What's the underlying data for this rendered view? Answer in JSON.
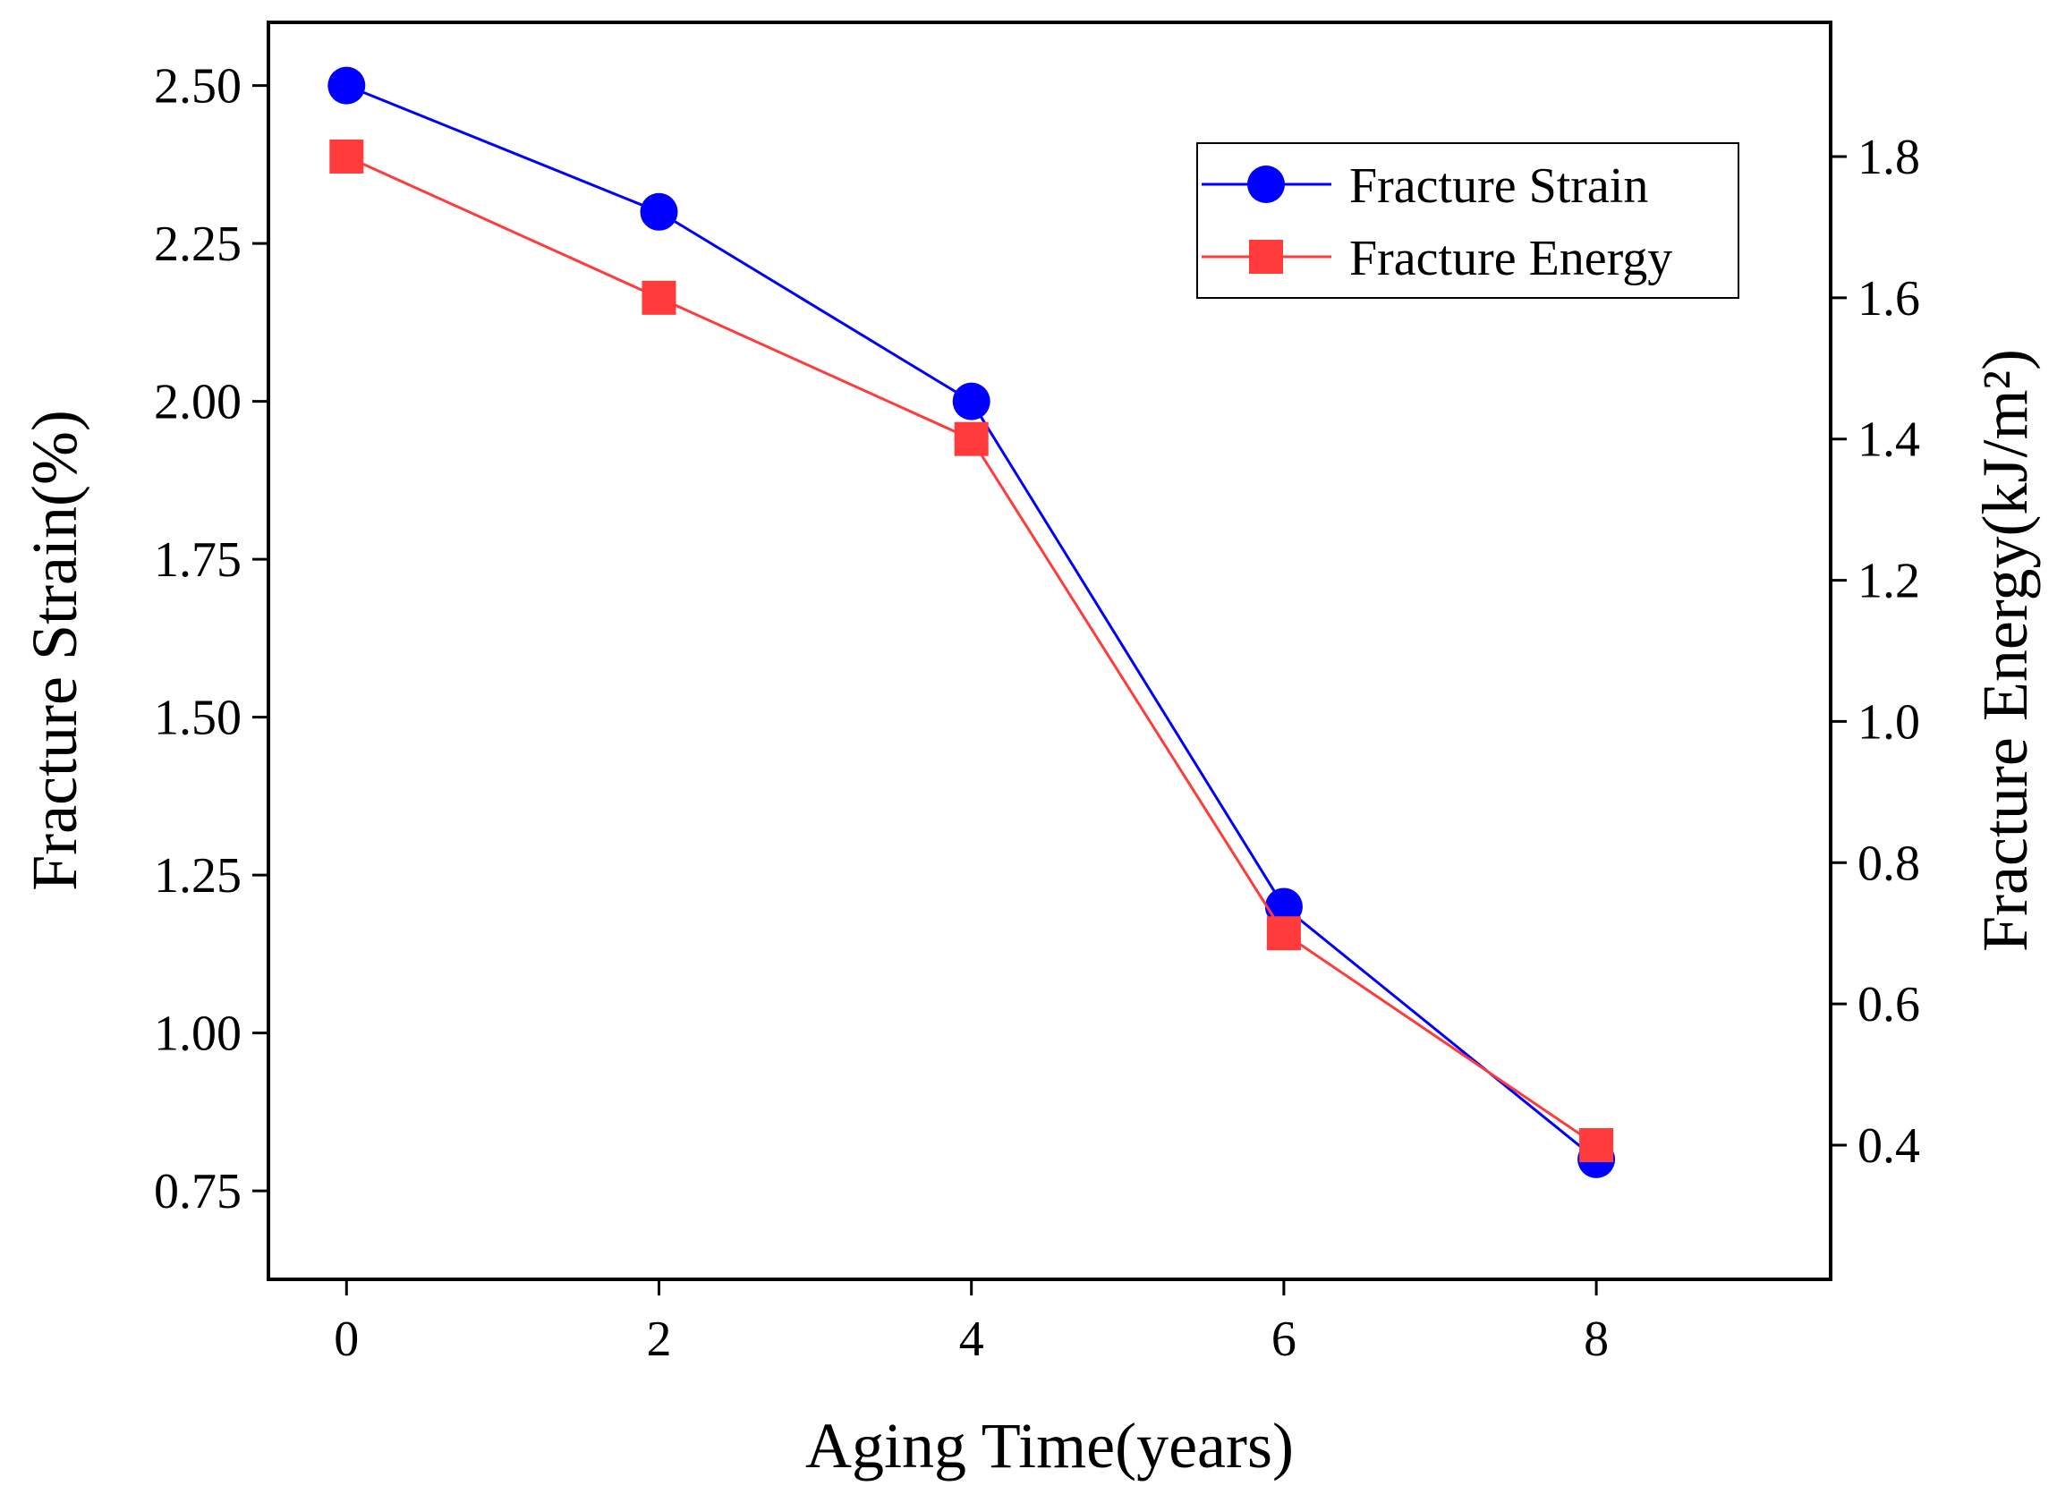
{
  "chart_data": {
    "type": "line",
    "title": "",
    "xlabel": "Aging Time(years)",
    "ylabel_left": "Fracture Strain(%)",
    "ylabel_right": "Fracture Energy(kJ/m²)",
    "x": [
      0,
      2,
      4,
      6,
      8
    ],
    "x_ticks": [
      "0",
      "2",
      "4",
      "6",
      "8"
    ],
    "xlim": [
      -0.5,
      9.5
    ],
    "y_left_ticks": [
      "0.75",
      "1.00",
      "1.25",
      "1.50",
      "1.75",
      "2.00",
      "2.25",
      "2.50"
    ],
    "y_left_lim": [
      0.61,
      2.6
    ],
    "y_right_ticks": [
      "0.4",
      "0.6",
      "0.8",
      "1.0",
      "1.2",
      "1.4",
      "1.6",
      "1.8"
    ],
    "y_right_lim": [
      0.21,
      1.99
    ],
    "grid": false,
    "legend_position": "top-right",
    "series": [
      {
        "name": "Fracture Strain",
        "axis": "left",
        "marker": "circle",
        "color": "#0000ff",
        "values": [
          2.5,
          2.3,
          2.0,
          1.2,
          0.8
        ]
      },
      {
        "name": "Fracture Energy",
        "axis": "right",
        "marker": "square",
        "color": "#ff3b3b",
        "values": [
          1.8,
          1.6,
          1.4,
          0.7,
          0.4
        ]
      }
    ]
  }
}
